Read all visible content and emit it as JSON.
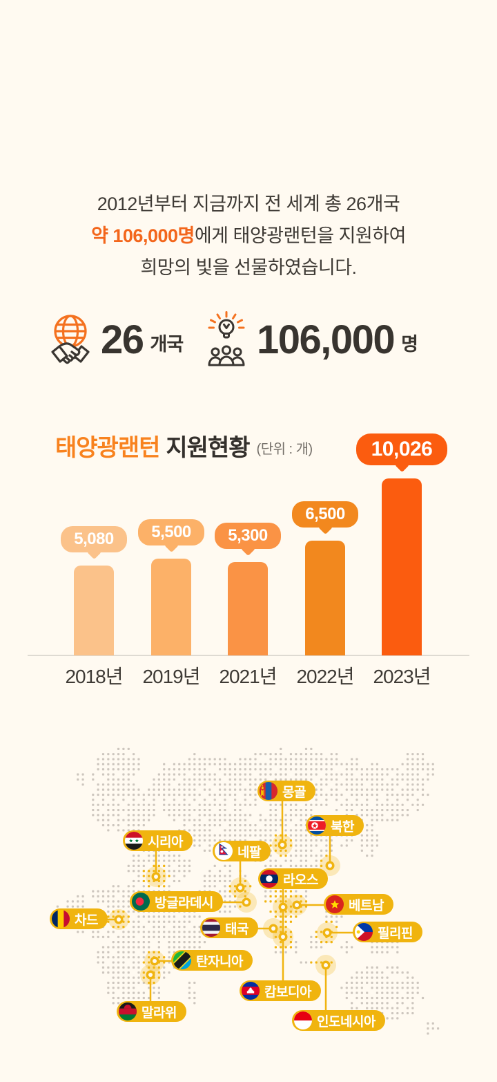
{
  "page": {
    "background": "#FFFAF1",
    "accent_orange": "#F3661B",
    "gold": "#F0B410"
  },
  "intro": {
    "line1": "2012년부터 지금까지 전 세계 총 26개국",
    "line2_accent": "약 106,000명",
    "line2_rest": "에게 태양광랜턴을 지원하여",
    "line3": "희망의 빛을 선물하였습니다."
  },
  "stats": [
    {
      "icon": "globe-handshake-icon",
      "value": "26",
      "unit": "개국"
    },
    {
      "icon": "solar-lantern-people-icon",
      "value": "106,000",
      "unit": "명"
    }
  ],
  "chart_data": {
    "type": "bar",
    "title_accent": "태양광랜턴",
    "title_main": "지원현황",
    "unit_label": "(단위 : 개)",
    "categories": [
      "2018년",
      "2019년",
      "2021년",
      "2022년",
      "2023년"
    ],
    "values": [
      5080,
      5500,
      5300,
      6500,
      10026
    ],
    "value_labels": [
      "5,080",
      "5,500",
      "5,300",
      "6,500",
      "10,026"
    ],
    "bar_colors": [
      "#FBC28A",
      "#FCB168",
      "#FA9345",
      "#F2881E",
      "#FB5C0F"
    ],
    "ylim": [
      0,
      10300
    ],
    "grid": "baseline-only",
    "legend": "none"
  },
  "map": {
    "countries": [
      {
        "id": "mongolia",
        "label": "몽골"
      },
      {
        "id": "north-korea",
        "label": "북한"
      },
      {
        "id": "syria",
        "label": "시리아"
      },
      {
        "id": "nepal",
        "label": "네팔"
      },
      {
        "id": "laos",
        "label": "라오스"
      },
      {
        "id": "bangladesh",
        "label": "방글라데시"
      },
      {
        "id": "chad",
        "label": "차드"
      },
      {
        "id": "thailand",
        "label": "태국"
      },
      {
        "id": "vietnam",
        "label": "베트남"
      },
      {
        "id": "philippines",
        "label": "필리핀"
      },
      {
        "id": "tanzania",
        "label": "탄자니아"
      },
      {
        "id": "cambodia",
        "label": "캄보디아"
      },
      {
        "id": "malawi",
        "label": "말라위"
      },
      {
        "id": "indonesia",
        "label": "인도네시아"
      }
    ]
  }
}
